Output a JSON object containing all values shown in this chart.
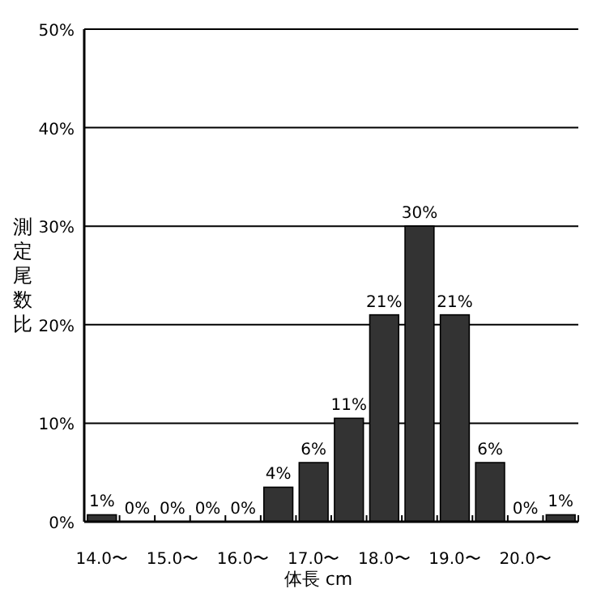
{
  "chart_data": {
    "type": "bar",
    "categories": [
      "14.0〜",
      null,
      "15.0〜",
      null,
      "16.0〜",
      null,
      "17.0〜",
      null,
      "18.0〜",
      null,
      "19.0〜",
      null,
      "20.0〜",
      null
    ],
    "values": [
      0.7,
      0,
      0,
      0,
      0,
      3.5,
      6,
      10.5,
      21,
      30,
      21,
      6,
      0,
      0.7
    ],
    "value_labels": [
      "1%",
      "0%",
      "0%",
      "0%",
      "0%",
      "4%",
      "6%",
      "11%",
      "21%",
      "30%",
      "21%",
      "6%",
      "0%",
      "1%"
    ],
    "color": "#333333",
    "xlabel": "体長 cm",
    "ylabel": "測定尾数比",
    "ylim": [
      0,
      50
    ],
    "yticks": [
      {
        "value": 0,
        "label": "0%"
      },
      {
        "value": 10,
        "label": "10%"
      },
      {
        "value": 20,
        "label": "20%"
      },
      {
        "value": 30,
        "label": "30%"
      },
      {
        "value": 40,
        "label": "40%"
      },
      {
        "value": 50,
        "label": "50%"
      }
    ],
    "grid": "y"
  }
}
